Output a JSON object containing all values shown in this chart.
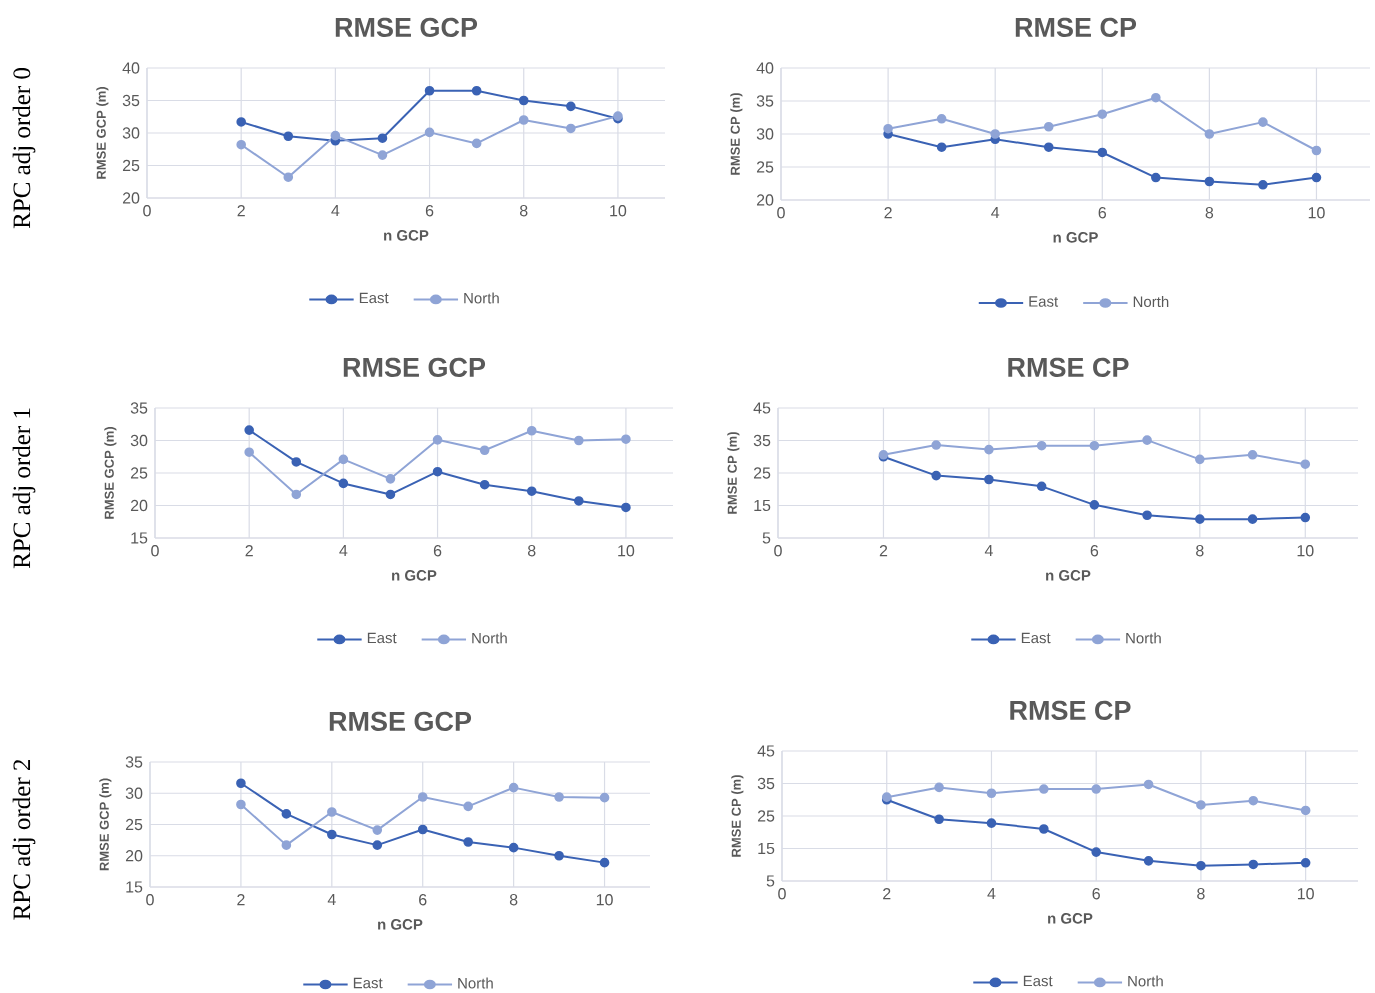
{
  "chart_data": [
    {
      "type": "line",
      "title": "RMSE GCP",
      "xlabel": "n GCP",
      "ylabel": "RMSE GCP (m)",
      "annotations": [
        "RPC adj order 0"
      ],
      "x": [
        2,
        3,
        4,
        5,
        6,
        7,
        8,
        9,
        10
      ],
      "xlim": [
        0,
        11
      ],
      "xticks": [
        0,
        2,
        4,
        6,
        8,
        10
      ],
      "ylim": [
        20,
        40
      ],
      "yticks": [
        20,
        25,
        30,
        35,
        40
      ],
      "grid": true,
      "legend": "bottom",
      "marker": "circle",
      "line_style": "solid",
      "series": [
        {
          "name": "East",
          "color": "#3a62b4",
          "values": [
            31.7,
            29.5,
            28.8,
            29.2,
            36.5,
            36.5,
            35.0,
            34.1,
            32.2
          ]
        },
        {
          "name": "North",
          "color": "#8fa4d6",
          "values": [
            28.2,
            23.2,
            29.6,
            26.6,
            30.1,
            28.4,
            32.0,
            30.7,
            32.6
          ]
        }
      ]
    },
    {
      "type": "line",
      "title": "RMSE CP",
      "xlabel": "n GCP",
      "ylabel": "RMSE CP (m)",
      "x": [
        2,
        3,
        4,
        5,
        6,
        7,
        8,
        9,
        10
      ],
      "xlim": [
        0,
        11
      ],
      "xticks": [
        0,
        2,
        4,
        6,
        8,
        10
      ],
      "ylim": [
        20,
        40
      ],
      "yticks": [
        20,
        25,
        30,
        35,
        40
      ],
      "grid": true,
      "legend": "bottom",
      "marker": "circle",
      "line_style": "solid",
      "series": [
        {
          "name": "East",
          "color": "#3a62b4",
          "values": [
            30.0,
            28.0,
            29.2,
            28.0,
            27.2,
            23.4,
            22.8,
            22.3,
            23.4
          ]
        },
        {
          "name": "North",
          "color": "#8fa4d6",
          "values": [
            30.8,
            32.3,
            30.0,
            31.1,
            33.0,
            35.5,
            30.0,
            31.8,
            27.5
          ]
        }
      ]
    },
    {
      "type": "line",
      "title": "RMSE GCP",
      "xlabel": "n GCP",
      "ylabel": "RMSE GCP (m)",
      "annotations": [
        "RPC adj order 1"
      ],
      "x": [
        2,
        3,
        4,
        5,
        6,
        7,
        8,
        9,
        10
      ],
      "xlim": [
        0,
        11
      ],
      "xticks": [
        0,
        2,
        4,
        6,
        8,
        10
      ],
      "ylim": [
        15,
        35
      ],
      "yticks": [
        15,
        20,
        25,
        30,
        35
      ],
      "grid": true,
      "legend": "bottom",
      "marker": "circle",
      "line_style": "solid",
      "series": [
        {
          "name": "East",
          "color": "#3a62b4",
          "values": [
            31.6,
            26.7,
            23.4,
            21.7,
            25.2,
            23.2,
            22.2,
            20.7,
            19.7
          ]
        },
        {
          "name": "North",
          "color": "#8fa4d6",
          "values": [
            28.2,
            21.7,
            27.1,
            24.1,
            30.1,
            28.5,
            31.5,
            30.0,
            30.2
          ]
        }
      ]
    },
    {
      "type": "line",
      "title": "RMSE CP",
      "xlabel": "n GCP",
      "ylabel": "RMSE CP (m)",
      "x": [
        2,
        3,
        4,
        5,
        6,
        7,
        8,
        9,
        10
      ],
      "xlim": [
        0,
        11
      ],
      "xticks": [
        0,
        2,
        4,
        6,
        8,
        10
      ],
      "ylim": [
        5,
        45
      ],
      "yticks": [
        5,
        15,
        25,
        35,
        45
      ],
      "grid": true,
      "legend": "bottom",
      "marker": "circle",
      "line_style": "solid",
      "series": [
        {
          "name": "East",
          "color": "#3a62b4",
          "values": [
            30.0,
            24.2,
            23.0,
            20.9,
            15.2,
            12.0,
            10.8,
            10.8,
            11.3
          ]
        },
        {
          "name": "North",
          "color": "#8fa4d6",
          "values": [
            30.6,
            33.6,
            32.2,
            33.4,
            33.4,
            35.1,
            29.2,
            30.6,
            27.7
          ]
        }
      ]
    },
    {
      "type": "line",
      "title": "RMSE GCP",
      "xlabel": "n GCP",
      "ylabel": "RMSE GCP (m)",
      "annotations": [
        "RPC adj order 2"
      ],
      "x": [
        2,
        3,
        4,
        5,
        6,
        7,
        8,
        9,
        10
      ],
      "xlim": [
        0,
        11
      ],
      "xticks": [
        0,
        2,
        4,
        6,
        8,
        10
      ],
      "ylim": [
        15,
        35
      ],
      "yticks": [
        15,
        20,
        25,
        30,
        35
      ],
      "grid": true,
      "legend": "bottom",
      "marker": "circle",
      "line_style": "solid",
      "series": [
        {
          "name": "East",
          "color": "#3a62b4",
          "values": [
            31.6,
            26.7,
            23.4,
            21.7,
            24.2,
            22.2,
            21.3,
            20.0,
            18.9
          ]
        },
        {
          "name": "North",
          "color": "#8fa4d6",
          "values": [
            28.2,
            21.7,
            27.0,
            24.1,
            29.4,
            27.9,
            30.9,
            29.4,
            29.3
          ]
        }
      ]
    },
    {
      "type": "line",
      "title": "RMSE CP",
      "xlabel": "n GCP",
      "ylabel": "RMSE CP (m)",
      "x": [
        2,
        3,
        4,
        5,
        6,
        7,
        8,
        9,
        10
      ],
      "xlim": [
        0,
        11
      ],
      "xticks": [
        0,
        2,
        4,
        6,
        8,
        10
      ],
      "ylim": [
        5,
        45
      ],
      "yticks": [
        5,
        15,
        25,
        35,
        45
      ],
      "grid": true,
      "legend": "bottom",
      "marker": "circle",
      "line_style": "solid",
      "series": [
        {
          "name": "East",
          "color": "#3a62b4",
          "values": [
            30.0,
            24.0,
            22.8,
            21.0,
            13.9,
            11.2,
            9.7,
            10.1,
            10.6
          ]
        },
        {
          "name": "North",
          "color": "#8fa4d6",
          "values": [
            30.8,
            33.8,
            32.0,
            33.3,
            33.3,
            34.7,
            28.4,
            29.7,
            26.7
          ]
        }
      ]
    }
  ]
}
